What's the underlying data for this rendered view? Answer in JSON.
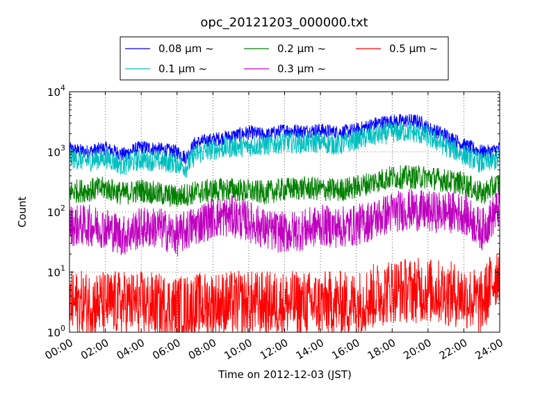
{
  "chart_data": {
    "type": "line",
    "title": "opc_20121203_000000.txt",
    "xlabel": "Time on 2012-12-03 (JST)",
    "ylabel": "Count",
    "x_range_hours": [
      0,
      24
    ],
    "xlim": [
      "00:00",
      "24:00"
    ],
    "x_ticks": [
      "00:00",
      "02:00",
      "04:00",
      "06:00",
      "08:00",
      "10:00",
      "12:00",
      "14:00",
      "16:00",
      "18:00",
      "20:00",
      "22:00",
      "24:00"
    ],
    "ylim": [
      1,
      10000
    ],
    "y_scale": "log",
    "y_ticks": [
      {
        "value": 1,
        "base": "10",
        "exp": "0"
      },
      {
        "value": 10,
        "base": "10",
        "exp": "1"
      },
      {
        "value": 100,
        "base": "10",
        "exp": "2"
      },
      {
        "value": 1000,
        "base": "10",
        "exp": "3"
      },
      {
        "value": 10000,
        "base": "10",
        "exp": "4"
      }
    ],
    "grid": true,
    "legend_placement": "top-center above plot",
    "series": [
      {
        "name": "0.08 μm ~",
        "color": "#0000ff",
        "x": [
          0,
          1,
          2,
          3,
          4,
          5,
          6,
          6.5,
          7,
          8,
          9,
          10,
          11,
          12,
          13,
          14,
          15,
          16,
          17,
          17.5,
          18,
          19,
          19.5,
          20,
          21,
          22,
          23,
          23.5,
          24
        ],
        "y": [
          1100,
          1000,
          1150,
          900,
          1200,
          1100,
          1000,
          800,
          1400,
          1600,
          1800,
          2100,
          1900,
          2300,
          2200,
          2300,
          2100,
          2300,
          2900,
          3100,
          3200,
          3300,
          3200,
          2500,
          1900,
          1300,
          1000,
          1000,
          1150
        ],
        "noise": 0.12
      },
      {
        "name": "0.1 μm ~",
        "color": "#00bfbf",
        "x": [
          0,
          1,
          2,
          3,
          4,
          5,
          6,
          6.5,
          7,
          8,
          9,
          10,
          11,
          12,
          13,
          14,
          15,
          16,
          17,
          18,
          19,
          20,
          21,
          22,
          23,
          24
        ],
        "y": [
          800,
          700,
          800,
          600,
          750,
          700,
          650,
          550,
          900,
          1100,
          1200,
          1250,
          1300,
          1450,
          1400,
          1450,
          1300,
          1600,
          1850,
          2100,
          2200,
          1800,
          1250,
          900,
          650,
          750
        ],
        "noise": 0.18
      },
      {
        "name": "0.2 μm ~",
        "color": "#008000",
        "x": [
          0,
          1,
          2,
          3,
          4,
          5,
          6,
          7,
          8,
          9,
          10,
          11,
          12,
          13,
          14,
          15,
          16,
          17,
          18,
          19,
          20,
          21,
          22,
          23,
          24
        ],
        "y": [
          220,
          230,
          250,
          200,
          230,
          200,
          180,
          210,
          230,
          240,
          220,
          210,
          240,
          250,
          240,
          230,
          260,
          320,
          380,
          380,
          380,
          330,
          300,
          200,
          300
        ],
        "noise": 0.2
      },
      {
        "name": "0.3 μm ~",
        "color": "#bf00bf",
        "x": [
          0,
          1,
          2,
          3,
          4,
          5,
          6,
          7,
          8,
          9,
          10,
          11,
          12,
          13,
          14,
          15,
          16,
          17,
          18,
          19,
          20,
          21,
          22,
          23,
          24
        ],
        "y": [
          60,
          60,
          55,
          40,
          55,
          55,
          40,
          60,
          80,
          85,
          70,
          50,
          45,
          50,
          60,
          55,
          60,
          75,
          100,
          110,
          100,
          100,
          95,
          50,
          120
        ],
        "noise": 0.35
      },
      {
        "name": "0.5 μm ~",
        "color": "#ff0000",
        "x": [
          0,
          2,
          4,
          6,
          8,
          10,
          12,
          14,
          16,
          17,
          18,
          19,
          20,
          22,
          23,
          24
        ],
        "y": [
          3,
          3,
          3,
          2.5,
          3,
          3,
          3,
          3,
          3,
          4,
          5,
          5,
          5,
          4,
          3,
          12
        ],
        "noise": 0.55
      }
    ]
  }
}
